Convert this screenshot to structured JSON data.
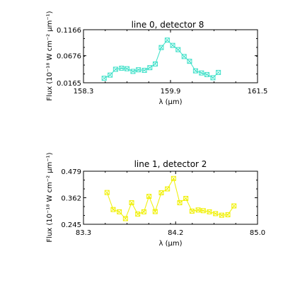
{
  "chart_data": [
    {
      "type": "line",
      "title": "line 0, detector 8",
      "xlabel": "λ (μm)",
      "ylabel": "Flux (10⁻¹⁸ W cm⁻² μm⁻¹)",
      "xlim": [
        158.3,
        161.5
      ],
      "ylim": [
        0.0165,
        0.1166
      ],
      "xticks": [
        "158.3",
        "159.9",
        "161.5"
      ],
      "yticks": [
        "0.0165",
        "0.0676",
        "0.1166"
      ],
      "color": "#3de0c8",
      "marker": "square-x",
      "x": [
        158.68,
        158.79,
        158.89,
        159.0,
        159.1,
        159.21,
        159.31,
        159.42,
        159.52,
        159.62,
        159.73,
        159.84,
        159.94,
        160.04,
        160.15,
        160.25,
        160.36,
        160.47,
        160.57,
        160.68,
        160.78
      ],
      "y": [
        0.025,
        0.031,
        0.042,
        0.044,
        0.043,
        0.038,
        0.041,
        0.04,
        0.045,
        0.052,
        0.083,
        0.097,
        0.087,
        0.079,
        0.066,
        0.057,
        0.039,
        0.035,
        0.032,
        0.026,
        0.036
      ]
    },
    {
      "type": "line",
      "title": "line 1, detector 2",
      "xlabel": "λ (μm)",
      "ylabel": "Flux (10⁻¹⁸ W cm⁻² μm⁻¹)",
      "xlim": [
        83.3,
        85.0
      ],
      "ylim": [
        0.245,
        0.479
      ],
      "xticks": [
        "83.3",
        "84.2",
        "85.0"
      ],
      "yticks": [
        "0.245",
        "0.362",
        "0.479"
      ],
      "color": "#f0f000",
      "marker": "square-x",
      "x": [
        83.53,
        83.59,
        83.65,
        83.71,
        83.77,
        83.83,
        83.89,
        83.94,
        84.0,
        84.06,
        84.12,
        84.18,
        84.24,
        84.3,
        84.36,
        84.42,
        84.47,
        84.53,
        84.59,
        84.65,
        84.71,
        84.77
      ],
      "y": [
        0.385,
        0.31,
        0.3,
        0.27,
        0.34,
        0.29,
        0.3,
        0.368,
        0.301,
        0.384,
        0.401,
        0.447,
        0.34,
        0.359,
        0.303,
        0.308,
        0.305,
        0.3,
        0.292,
        0.285,
        0.287,
        0.326
      ]
    }
  ]
}
